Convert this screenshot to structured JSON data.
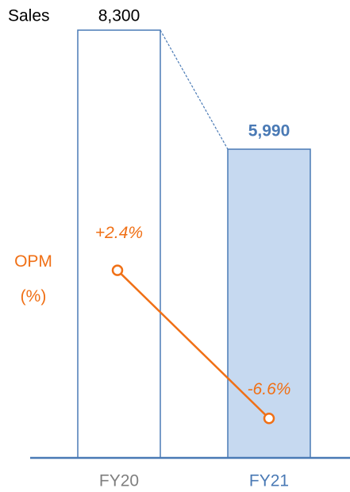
{
  "chart_data": {
    "type": "bar",
    "categories": [
      "FY20",
      "FY21"
    ],
    "category_colors": [
      "#7f7f7f",
      "#4a7ab5"
    ],
    "axis_color": "#4a7ab5",
    "series": [
      {
        "name": "Sales",
        "type": "bar",
        "values": [
          8300,
          5990
        ],
        "value_labels": [
          "8,300",
          "5,990"
        ],
        "colors": [
          "#ffffff",
          "#c6d9f0"
        ],
        "edge_color": "#4a7ab5",
        "label_colors": [
          "#000000",
          "#4a7ab5"
        ]
      },
      {
        "name": "OPM (%)",
        "type": "line",
        "axis": "y2",
        "values": [
          2.4,
          -6.6
        ],
        "value_labels": [
          "+2.4%",
          "-6.6%"
        ],
        "color": "#f07016"
      }
    ],
    "ylim": [
      0,
      8300
    ],
    "y2lim": [
      -9,
      17
    ]
  }
}
